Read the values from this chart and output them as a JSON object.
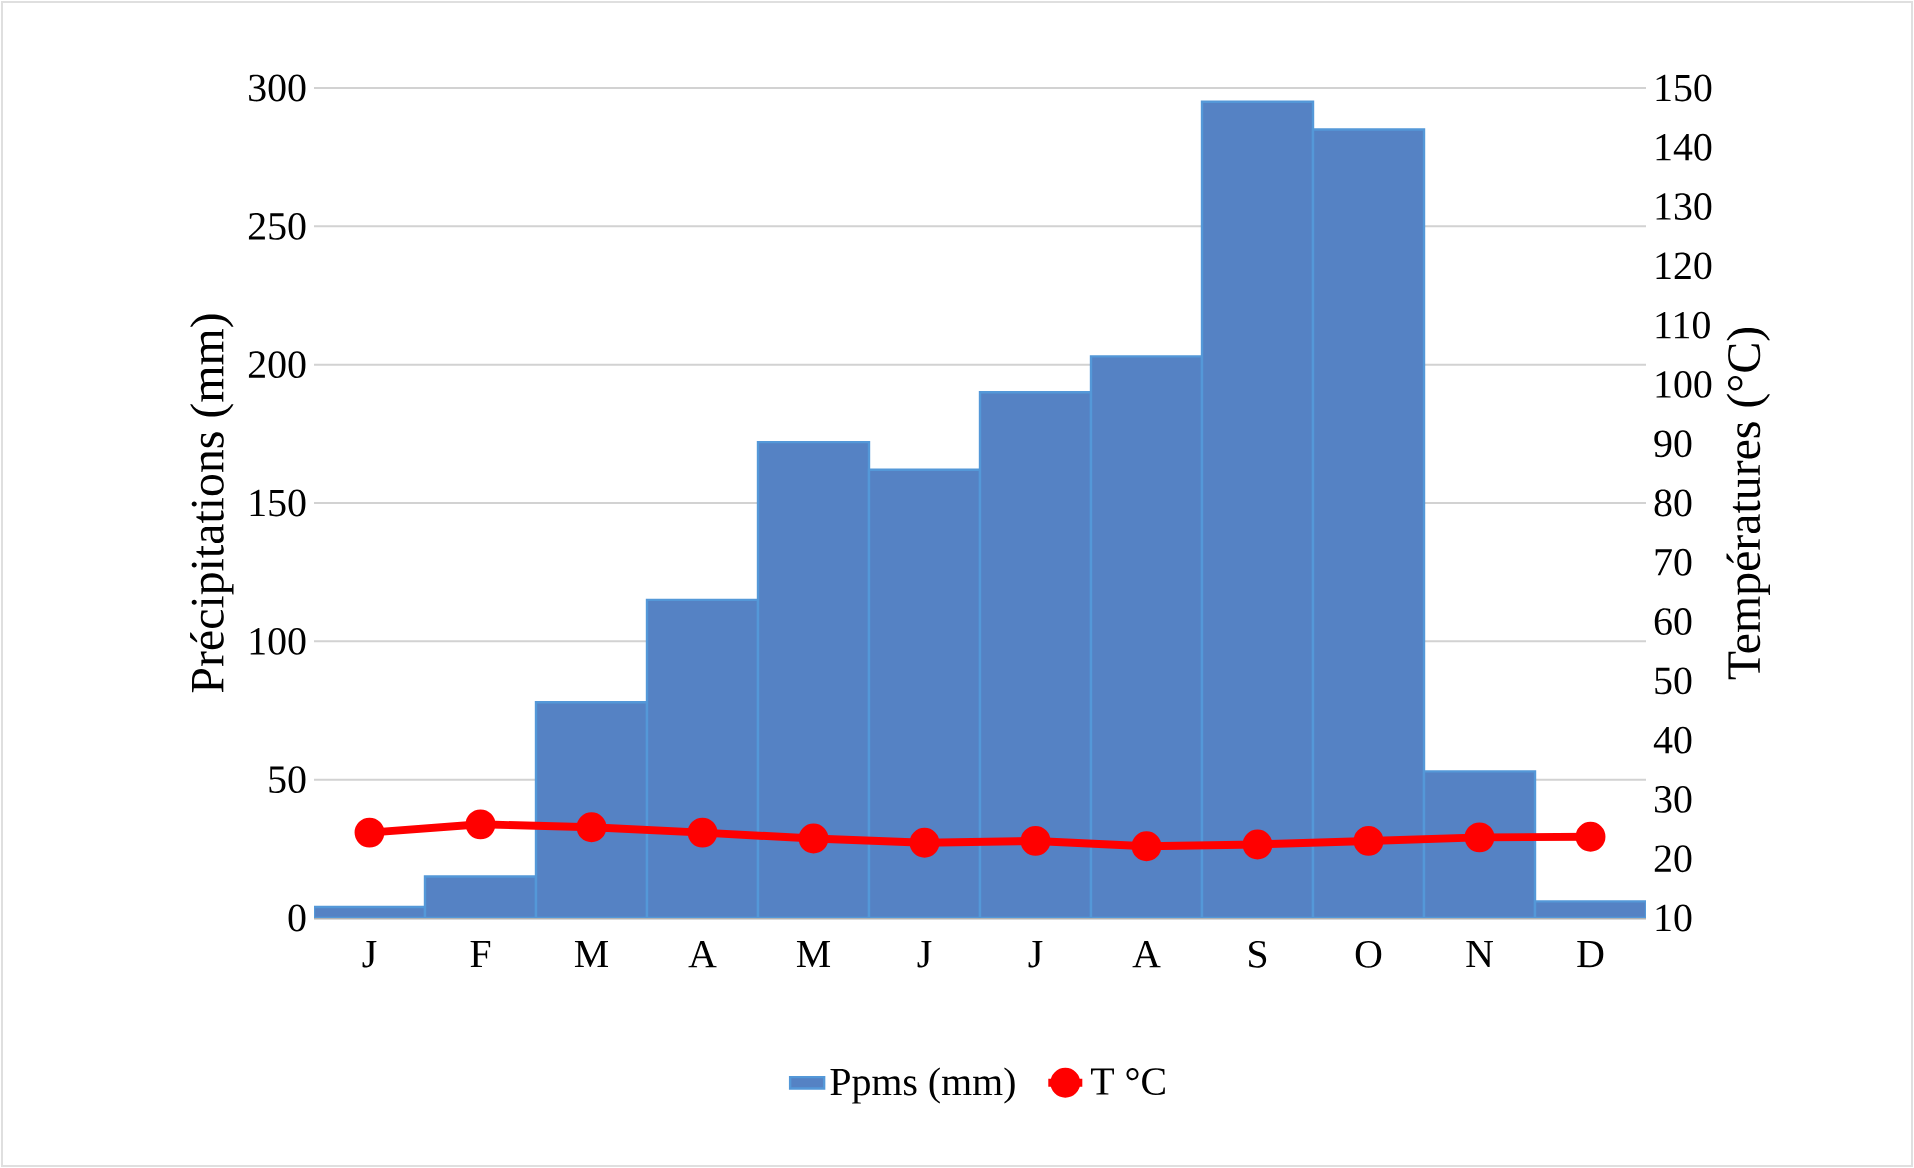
{
  "chart_data": {
    "type": "bar",
    "categories": [
      "J",
      "F",
      "M",
      "A",
      "M",
      "J",
      "J",
      "A",
      "S",
      "O",
      "N",
      "D"
    ],
    "series": [
      {
        "name": "Ppms (mm)",
        "color": "#5582c4",
        "values": [
          4,
          15,
          78,
          115,
          172,
          162,
          190,
          203,
          295,
          285,
          53,
          6
        ]
      },
      {
        "name": "T °C",
        "type": "line",
        "axis": "y2",
        "color": "#ff0000",
        "marker": "circle",
        "values": [
          24.4,
          25.8,
          25.3,
          24.4,
          23.4,
          22.7,
          23.0,
          22.1,
          22.4,
          23.0,
          23.6,
          23.7
        ]
      }
    ],
    "ylabel": "Précipitations (mm)",
    "y2label": "Températures (°C)",
    "ylim": [
      0,
      300
    ],
    "yticks": [
      0,
      50,
      100,
      150,
      200,
      250,
      300
    ],
    "y2lim": [
      10,
      150
    ],
    "y2ticks": [
      10,
      20,
      30,
      40,
      50,
      60,
      70,
      80,
      90,
      100,
      110,
      120,
      130,
      140,
      150
    ],
    "grid": "y",
    "legend": "bottom"
  }
}
